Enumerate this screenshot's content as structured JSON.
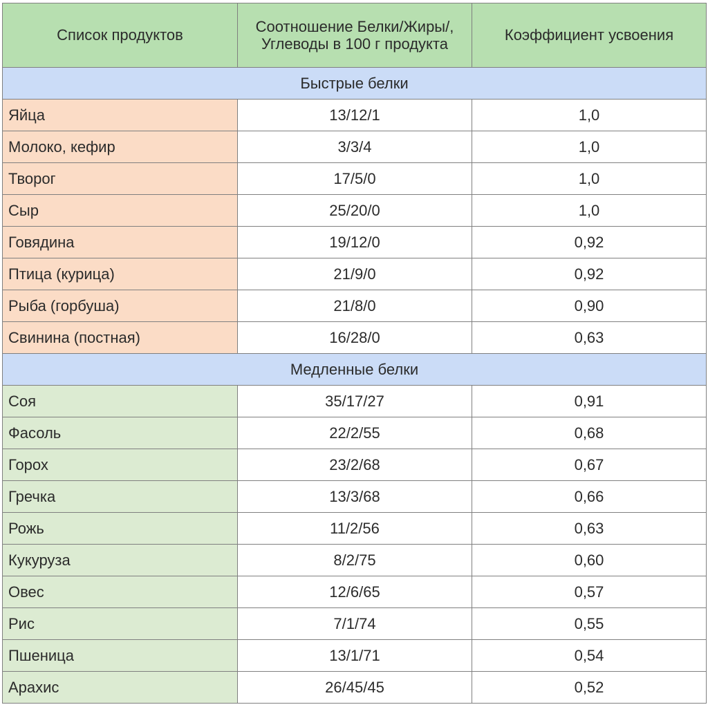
{
  "header": {
    "col_products": "Список продуктов",
    "col_ratio_line1": "Соотношение Белки/Жиры/,",
    "col_ratio_line2": "Углеводы в 100 г продукта",
    "col_coefficient": "Коэффициент усвоения"
  },
  "colors": {
    "header_bg": "#b7dfb0",
    "section_bg": "#cbdcf7",
    "fast_name_bg": "#fbdcc6",
    "slow_name_bg": "#dcebd2",
    "border": "#7f7f7f"
  },
  "fast": {
    "title": "Быстрые белки",
    "rows": [
      {
        "name": "Яйца",
        "ratio": "13/12/1",
        "coef": "1,0"
      },
      {
        "name": "Молоко, кефир",
        "ratio": "3/3/4",
        "coef": "1,0"
      },
      {
        "name": "Творог",
        "ratio": "17/5/0",
        "coef": "1,0"
      },
      {
        "name": "Сыр",
        "ratio": "25/20/0",
        "coef": "1,0"
      },
      {
        "name": "Говядина",
        "ratio": "19/12/0",
        "coef": "0,92"
      },
      {
        "name": "Птица (курица)",
        "ratio": "21/9/0",
        "coef": "0,92"
      },
      {
        "name": "Рыба (горбуша)",
        "ratio": "21/8/0",
        "coef": "0,90"
      },
      {
        "name": "Свинина (постная)",
        "ratio": "16/28/0",
        "coef": "0,63"
      }
    ]
  },
  "slow": {
    "title": "Медленные белки",
    "rows": [
      {
        "name": "Соя",
        "ratio": "35/17/27",
        "coef": "0,91"
      },
      {
        "name": "Фасоль",
        "ratio": "22/2/55",
        "coef": "0,68"
      },
      {
        "name": "Горох",
        "ratio": "23/2/68",
        "coef": "0,67"
      },
      {
        "name": "Гречка",
        "ratio": "13/3/68",
        "coef": "0,66"
      },
      {
        "name": "Рожь",
        "ratio": "11/2/56",
        "coef": "0,63"
      },
      {
        "name": "Кукуруза",
        "ratio": "8/2/75",
        "coef": "0,60"
      },
      {
        "name": "Овес",
        "ratio": "12/6/65",
        "coef": "0,57"
      },
      {
        "name": "Рис",
        "ratio": "7/1/74",
        "coef": "0,55"
      },
      {
        "name": "Пшеница",
        "ratio": "13/1/71",
        "coef": "0,54"
      },
      {
        "name": "Арахис",
        "ratio": "26/45/45",
        "coef": "0,52"
      }
    ]
  }
}
